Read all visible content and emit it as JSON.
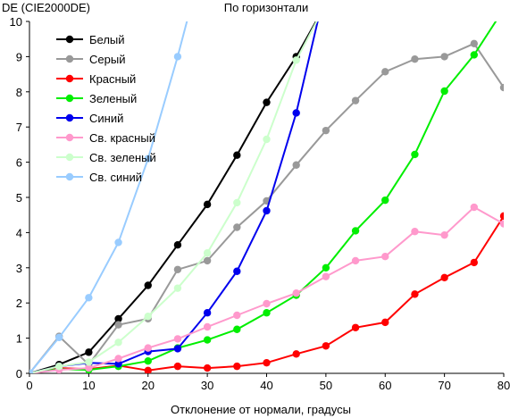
{
  "chart_data": {
    "type": "line",
    "title": "По горизонтали",
    "ylabel": "DE (CIE2000DE)",
    "xlabel": "Отклонение от нормали, градусы",
    "xlim": [
      0,
      80
    ],
    "ylim": [
      0,
      10
    ],
    "xticks": [
      0,
      10,
      20,
      30,
      40,
      50,
      60,
      70,
      80
    ],
    "yticks": [
      0,
      1,
      2,
      3,
      4,
      5,
      6,
      7,
      8,
      9,
      10
    ],
    "grid": false,
    "legend_position": "top-left",
    "series": [
      {
        "name": "Белый",
        "color": "#000000",
        "x": [
          0,
          5,
          10,
          15,
          20,
          25,
          30,
          35,
          40,
          45,
          50
        ],
        "y": [
          0,
          0.25,
          0.6,
          1.55,
          2.5,
          3.65,
          4.8,
          6.2,
          7.7,
          9.0,
          10.5
        ]
      },
      {
        "name": "Серый",
        "color": "#999999",
        "x": [
          0,
          5,
          10,
          15,
          20,
          25,
          30,
          35,
          40,
          45,
          50,
          55,
          60,
          65,
          70,
          75,
          80
        ],
        "y": [
          0,
          1.05,
          0.25,
          1.38,
          1.55,
          2.95,
          3.2,
          4.15,
          4.9,
          5.92,
          6.9,
          7.75,
          8.57,
          8.93,
          9.0,
          9.37,
          8.12
        ]
      },
      {
        "name": "Красный",
        "color": "#ff0000",
        "x": [
          0,
          5,
          10,
          15,
          20,
          25,
          30,
          35,
          40,
          45,
          50,
          55,
          60,
          65,
          70,
          75,
          80
        ],
        "y": [
          0,
          0.15,
          0.12,
          0.22,
          0.08,
          0.2,
          0.15,
          0.2,
          0.3,
          0.55,
          0.78,
          1.3,
          1.45,
          2.25,
          2.72,
          3.15,
          4.47
        ]
      },
      {
        "name": "Зеленый",
        "color": "#00ee00",
        "x": [
          0,
          5,
          10,
          15,
          20,
          25,
          30,
          35,
          40,
          45,
          50,
          55,
          60,
          65,
          70,
          75,
          80
        ],
        "y": [
          0,
          0.12,
          0.1,
          0.2,
          0.35,
          0.72,
          0.95,
          1.25,
          1.72,
          2.22,
          3.0,
          4.05,
          4.92,
          6.22,
          8.02,
          9.05,
          10.35
        ]
      },
      {
        "name": "Синий",
        "color": "#0000ee",
        "x": [
          0,
          5,
          10,
          15,
          20,
          25,
          30,
          35,
          40,
          45,
          50
        ],
        "y": [
          0,
          0.2,
          0.3,
          0.27,
          0.62,
          0.7,
          1.72,
          2.9,
          4.62,
          7.4,
          11.0
        ]
      },
      {
        "name": "Св. красный",
        "color": "#ff99cc",
        "x": [
          0,
          5,
          10,
          15,
          20,
          25,
          30,
          35,
          40,
          45,
          50,
          55,
          60,
          65,
          70,
          75,
          80
        ],
        "y": [
          0,
          0.1,
          0.15,
          0.42,
          0.72,
          0.98,
          1.32,
          1.65,
          1.98,
          2.28,
          2.75,
          3.2,
          3.32,
          4.03,
          3.93,
          4.72,
          4.25
        ]
      },
      {
        "name": "Св. зеленый",
        "color": "#ccffcc",
        "x": [
          0,
          5,
          10,
          15,
          20,
          25,
          30,
          35,
          40,
          45,
          50
        ],
        "y": [
          0,
          0.2,
          0.32,
          0.88,
          1.62,
          2.42,
          3.42,
          4.85,
          6.65,
          8.9,
          10.5
        ]
      },
      {
        "name": "Св. синий",
        "color": "#99ccff",
        "x": [
          0,
          5,
          10,
          15,
          20,
          25,
          30
        ],
        "y": [
          0,
          1.02,
          2.15,
          3.72,
          6.1,
          9.0,
          12.2
        ]
      }
    ]
  }
}
